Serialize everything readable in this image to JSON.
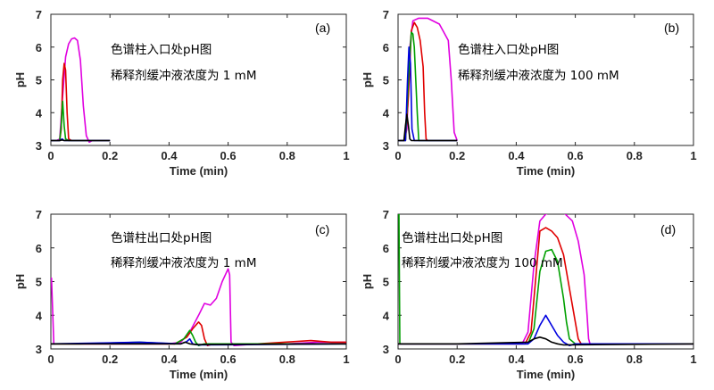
{
  "chart_data": [
    {
      "type": "line",
      "panel_label": "(a)",
      "annotation": [
        "色谱柱入口处pH图",
        "稀释剂缓冲液浓度为 1 mM"
      ],
      "xlabel": "Time (min)",
      "ylabel": "pH",
      "xlim": [
        0,
        1
      ],
      "ylim": [
        3,
        7
      ],
      "xticks": [
        "0",
        "0.2",
        "0.4",
        "0.6",
        "0.8",
        "1"
      ],
      "yticks": [
        "3",
        "4",
        "5",
        "6",
        "7"
      ],
      "series": [
        {
          "color": "#e000e0",
          "x": [
            0,
            0.02,
            0.03,
            0.04,
            0.05,
            0.06,
            0.07,
            0.08,
            0.09,
            0.1,
            0.11,
            0.12,
            0.13,
            0.14,
            0.2
          ],
          "y": [
            3.15,
            3.15,
            3.2,
            4.5,
            5.7,
            6.1,
            6.25,
            6.28,
            6.2,
            5.6,
            4.2,
            3.3,
            3.1,
            3.15,
            3.15
          ]
        },
        {
          "color": "#e00000",
          "x": [
            0,
            0.03,
            0.035,
            0.04,
            0.045,
            0.05,
            0.055,
            0.06,
            0.07,
            0.2
          ],
          "y": [
            3.15,
            3.15,
            3.5,
            5.0,
            5.5,
            5.3,
            4.0,
            3.2,
            3.15,
            3.15
          ]
        },
        {
          "color": "#00a000",
          "x": [
            0,
            0.03,
            0.035,
            0.04,
            0.045,
            0.05,
            0.06,
            0.2
          ],
          "y": [
            3.15,
            3.15,
            3.6,
            4.35,
            3.6,
            3.2,
            3.15,
            3.15
          ]
        },
        {
          "color": "#0000e0",
          "x": [
            0,
            0.03,
            0.038,
            0.045,
            0.05,
            0.2
          ],
          "y": [
            3.15,
            3.15,
            3.2,
            3.15,
            3.15,
            3.15
          ]
        },
        {
          "color": "#000000",
          "x": [
            0,
            0.03,
            0.038,
            0.045,
            0.05,
            0.2
          ],
          "y": [
            3.15,
            3.15,
            3.17,
            3.15,
            3.15,
            3.15
          ]
        }
      ]
    },
    {
      "type": "line",
      "panel_label": "(b)",
      "annotation": [
        "色谱柱入口处pH图",
        "稀释剂缓冲液浓度为 100 mM"
      ],
      "xlabel": "Time (min)",
      "ylabel": "pH",
      "xlim": [
        0,
        1
      ],
      "ylim": [
        3,
        7
      ],
      "xticks": [
        "0",
        "0.2",
        "0.4",
        "0.6",
        "0.8",
        "1"
      ],
      "yticks": [
        "3",
        "4",
        "5",
        "6",
        "7"
      ],
      "series": [
        {
          "color": "#e000e0",
          "x": [
            0,
            0.02,
            0.03,
            0.04,
            0.05,
            0.07,
            0.1,
            0.14,
            0.17,
            0.18,
            0.19,
            0.2
          ],
          "y": [
            3.15,
            3.15,
            3.5,
            6.0,
            6.8,
            6.88,
            6.88,
            6.7,
            6.2,
            5.0,
            3.4,
            3.15
          ]
        },
        {
          "color": "#e00000",
          "x": [
            0,
            0.025,
            0.035,
            0.045,
            0.055,
            0.065,
            0.075,
            0.085,
            0.09,
            0.095,
            0.1,
            0.2
          ],
          "y": [
            3.15,
            3.15,
            4.5,
            6.5,
            6.75,
            6.6,
            6.2,
            5.4,
            4.0,
            3.2,
            3.15,
            3.15
          ]
        },
        {
          "color": "#00a000",
          "x": [
            0,
            0.025,
            0.035,
            0.045,
            0.05,
            0.055,
            0.065,
            0.07,
            0.2
          ],
          "y": [
            3.15,
            3.15,
            5.0,
            6.45,
            6.4,
            6.0,
            4.0,
            3.15,
            3.15
          ]
        },
        {
          "color": "#0000e0",
          "x": [
            0,
            0.025,
            0.032,
            0.037,
            0.042,
            0.047,
            0.055,
            0.2
          ],
          "y": [
            3.15,
            3.15,
            5.0,
            6.0,
            5.5,
            3.5,
            3.15,
            3.15
          ]
        },
        {
          "color": "#000000",
          "x": [
            0,
            0.02,
            0.025,
            0.03,
            0.035,
            0.04,
            0.045,
            0.2
          ],
          "y": [
            3.15,
            3.15,
            3.6,
            3.95,
            3.6,
            3.2,
            3.15,
            3.15
          ]
        }
      ]
    },
    {
      "type": "line",
      "panel_label": "(c)",
      "annotation": [
        "色谱柱出口处pH图",
        "稀释剂缓冲液浓度为 1 mM"
      ],
      "xlabel": "Time (min)",
      "ylabel": "pH",
      "xlim": [
        0,
        1
      ],
      "ylim": [
        3,
        7
      ],
      "xticks": [
        "0",
        "0.2",
        "0.4",
        "0.6",
        "0.8",
        "1"
      ],
      "yticks": [
        "3",
        "4",
        "5",
        "6",
        "7"
      ],
      "series": [
        {
          "color": "#e000e0",
          "x": [
            0,
            0.002,
            0.01,
            0.2,
            0.4,
            0.44,
            0.47,
            0.5,
            0.52,
            0.54,
            0.56,
            0.58,
            0.6,
            0.605,
            0.61,
            0.62,
            0.7,
            0.8,
            0.9,
            1
          ],
          "y": [
            5.1,
            5.1,
            3.15,
            3.15,
            3.15,
            3.2,
            3.5,
            4.0,
            4.35,
            4.3,
            4.5,
            5.0,
            5.38,
            5.2,
            3.2,
            3.1,
            3.15,
            3.15,
            3.2,
            3.2
          ]
        },
        {
          "color": "#e00000",
          "x": [
            0,
            0.1,
            0.3,
            0.42,
            0.46,
            0.48,
            0.5,
            0.51,
            0.52,
            0.53,
            0.55,
            0.7,
            0.88,
            0.95,
            1
          ],
          "y": [
            3.15,
            3.15,
            3.15,
            3.15,
            3.35,
            3.6,
            3.8,
            3.7,
            3.3,
            3.1,
            3.15,
            3.15,
            3.25,
            3.2,
            3.2
          ]
        },
        {
          "color": "#00a000",
          "x": [
            0,
            0.1,
            0.3,
            0.42,
            0.45,
            0.47,
            0.48,
            0.49,
            0.5,
            0.52,
            1
          ],
          "y": [
            3.15,
            3.15,
            3.2,
            3.15,
            3.3,
            3.55,
            3.4,
            3.2,
            3.1,
            3.15,
            3.15
          ]
        },
        {
          "color": "#0000e0",
          "x": [
            0,
            0.2,
            0.3,
            0.44,
            0.46,
            0.47,
            0.48,
            0.5,
            1
          ],
          "y": [
            3.15,
            3.18,
            3.2,
            3.15,
            3.22,
            3.3,
            3.15,
            3.12,
            3.15
          ]
        },
        {
          "color": "#000000",
          "x": [
            0,
            0.3,
            0.44,
            0.455,
            0.47,
            0.49,
            1
          ],
          "y": [
            3.15,
            3.15,
            3.15,
            3.2,
            3.15,
            3.13,
            3.15
          ]
        }
      ]
    },
    {
      "type": "line",
      "panel_label": "(d)",
      "annotation": [
        "色谱柱出口处pH图",
        "稀释剂缓冲液浓度为 100 mM"
      ],
      "xlabel": "Time (min)",
      "ylabel": "pH",
      "xlim": [
        0,
        1
      ],
      "ylim": [
        3,
        7
      ],
      "xticks": [
        "0",
        "0.2",
        "0.4",
        "0.6",
        "0.8",
        "1"
      ],
      "yticks": [
        "3",
        "4",
        "5",
        "6",
        "7"
      ],
      "series": [
        {
          "color": "#e000e0",
          "x": [
            0,
            0.2,
            0.42,
            0.44,
            0.46,
            0.48,
            0.5,
            0.53,
            0.56,
            0.59,
            0.61,
            0.63,
            0.64,
            0.645,
            0.65,
            0.7,
            1
          ],
          "y": [
            3.15,
            3.15,
            3.15,
            3.5,
            5.5,
            6.8,
            7.0,
            7.1,
            7.05,
            6.8,
            6.2,
            5.2,
            4.0,
            3.3,
            3.15,
            3.15,
            3.15
          ]
        },
        {
          "color": "#e00000",
          "x": [
            0,
            0.2,
            0.43,
            0.45,
            0.47,
            0.48,
            0.5,
            0.52,
            0.54,
            0.56,
            0.58,
            0.6,
            0.61,
            0.62,
            0.65,
            1
          ],
          "y": [
            3.15,
            3.15,
            3.15,
            3.5,
            5.5,
            6.5,
            6.6,
            6.5,
            6.3,
            5.8,
            4.8,
            3.8,
            3.3,
            3.15,
            3.15,
            3.15
          ]
        },
        {
          "color": "#00a000",
          "x": [
            0,
            0.003,
            0.006,
            0.2,
            0.44,
            0.46,
            0.48,
            0.5,
            0.52,
            0.54,
            0.56,
            0.57,
            0.58,
            0.6,
            1
          ],
          "y": [
            7.0,
            7.0,
            3.15,
            3.15,
            3.15,
            3.6,
            5.3,
            5.9,
            5.95,
            5.6,
            4.5,
            3.8,
            3.3,
            3.15,
            3.15
          ]
        },
        {
          "color": "#0000e0",
          "x": [
            0,
            0.2,
            0.44,
            0.46,
            0.48,
            0.5,
            0.52,
            0.54,
            0.56,
            0.58,
            0.6,
            1
          ],
          "y": [
            3.15,
            3.15,
            3.15,
            3.3,
            3.7,
            4.0,
            3.7,
            3.4,
            3.2,
            3.1,
            3.15,
            3.15
          ]
        },
        {
          "color": "#000000",
          "x": [
            0,
            0.2,
            0.44,
            0.46,
            0.48,
            0.5,
            0.52,
            0.54,
            0.56,
            1
          ],
          "y": [
            3.15,
            3.15,
            3.2,
            3.3,
            3.35,
            3.3,
            3.2,
            3.15,
            3.12,
            3.15
          ]
        }
      ]
    }
  ]
}
